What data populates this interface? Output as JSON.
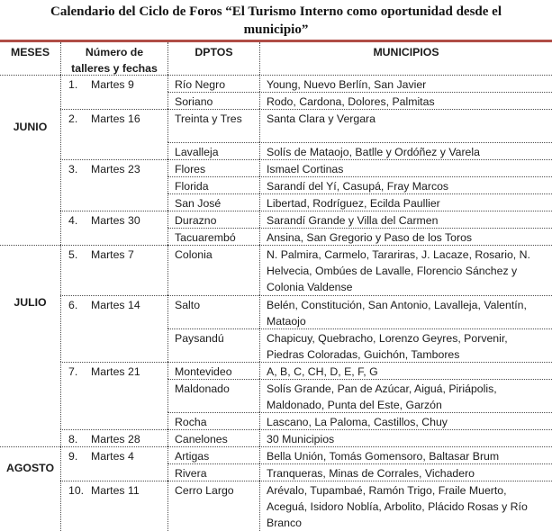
{
  "title": "Calendario del Ciclo de Foros “El Turismo Interno como oportunidad desde el municipio”",
  "accent_color": "#b04d46",
  "header": {
    "meses": "MESES",
    "numero": "Número de talleres y fechas",
    "dptos": "DPTOS",
    "municipios": "MUNICIPIOS"
  },
  "months": [
    {
      "name": "JUNIO",
      "workshops": [
        {
          "num": "1.",
          "date": "Martes 9",
          "rows": [
            {
              "dpto": "Río Negro",
              "municipios": "Young, Nuevo Berlín, San Javier",
              "lines": 1
            },
            {
              "dpto": "Soriano",
              "municipios": "Rodo, Cardona, Dolores, Palmitas",
              "lines": 1
            }
          ]
        },
        {
          "num": "2.",
          "date": "Martes 16",
          "rows": [
            {
              "dpto": "Treinta y Tres",
              "municipios": "Santa Clara y Vergara",
              "lines": 2
            },
            {
              "dpto": "Lavalleja",
              "municipios": "Solís de Mataojo, Batlle y Ordóñez y Varela",
              "lines": 1
            }
          ]
        },
        {
          "num": "3.",
          "date": "Martes 23",
          "rows": [
            {
              "dpto": "Flores",
              "municipios": "Ismael Cortinas",
              "lines": 1
            },
            {
              "dpto": "Florida",
              "municipios": "Sarandí del Yí, Casupá, Fray Marcos",
              "lines": 1
            },
            {
              "dpto": "San José",
              "municipios": "Libertad, Rodríguez, Ecilda Paullier",
              "lines": 1
            }
          ]
        },
        {
          "num": "4.",
          "date": "Martes 30",
          "rows": [
            {
              "dpto": "Durazno",
              "municipios": "Sarandí Grande y Villa del Carmen",
              "lines": 1
            },
            {
              "dpto": "Tacuarembó",
              "municipios": "Ansina, San Gregorio y Paso de los Toros",
              "lines": 1
            }
          ]
        }
      ]
    },
    {
      "name": "JULIO",
      "workshops": [
        {
          "num": "5.",
          "date": "Martes 7",
          "rows": [
            {
              "dpto": "Colonia",
              "municipios": "N. Palmira, Carmelo, Tarariras, J. Lacaze, Rosario, N. Helvecia, Ombúes de Lavalle, Florencio Sánchez y Colonia Valdense",
              "lines": 3
            }
          ]
        },
        {
          "num": "6.",
          "date": "Martes 14",
          "rows": [
            {
              "dpto": "Salto",
              "municipios": "Belén, Constitución, San Antonio, Lavalleja, Valentín, Mataojo",
              "lines": 2
            },
            {
              "dpto": "Paysandú",
              "municipios": "Chapicuy, Quebracho, Lorenzo Geyres, Porvenir, Piedras Coloradas, Guichón, Tambores",
              "lines": 2
            }
          ]
        },
        {
          "num": "7.",
          "date": "Martes 21",
          "rows": [
            {
              "dpto": "Montevideo",
              "municipios": "A, B, C, CH, D, E, F, G",
              "lines": 1
            },
            {
              "dpto": "Maldonado",
              "municipios": "Solís Grande, Pan de Azúcar, Aiguá, Piriápolis, Maldonado, Punta del Este, Garzón",
              "lines": 2
            },
            {
              "dpto": "Rocha",
              "municipios": "Lascano, La Paloma, Castillos, Chuy",
              "lines": 1
            }
          ]
        },
        {
          "num": "8.",
          "date": "Martes 28",
          "rows": [
            {
              "dpto": "Canelones",
              "municipios": "30 Municipios",
              "lines": 1
            }
          ]
        }
      ]
    },
    {
      "name": "AGOSTO",
      "workshops": [
        {
          "num": "9.",
          "date": "Martes 4",
          "rows": [
            {
              "dpto": "Artigas",
              "municipios": "Bella Unión, Tomás Gomensoro, Baltasar Brum",
              "lines": 1
            },
            {
              "dpto": "Rivera",
              "municipios": "Tranqueras, Minas de Corrales, Vichadero",
              "lines": 1
            }
          ]
        },
        {
          "num": "10.",
          "date": "Martes 11",
          "rows": [
            {
              "dpto": "Cerro Largo",
              "municipios": "Arévalo, Tupambaé, Ramón Trigo, Fraile Muerto, Aceguá, Isidoro Noblía, Arbolito, Plácido Rosas y Río Branco",
              "lines": 3
            }
          ]
        }
      ]
    }
  ]
}
